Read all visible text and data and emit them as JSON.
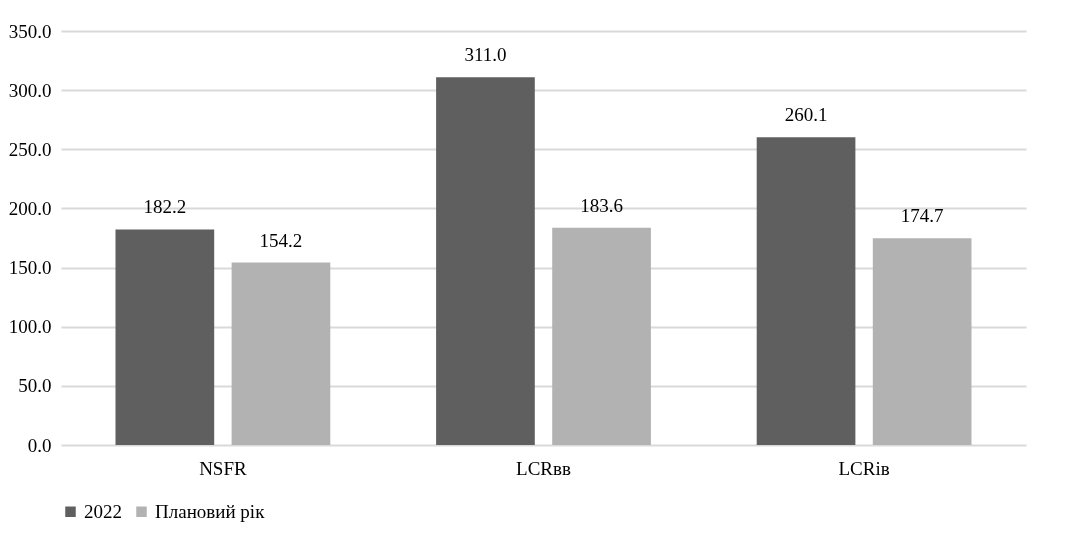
{
  "chart_data": {
    "type": "bar",
    "categories": [
      "NSFR",
      "LCRвв",
      "LCRiв"
    ],
    "series": [
      {
        "name": "2022",
        "color": "#5f5f5f",
        "values": [
          182.2,
          311.0,
          260.1
        ],
        "value_labels": [
          "182.2",
          "311.0",
          "260.1"
        ]
      },
      {
        "name": "Плановий рік",
        "color": "#b2b2b2",
        "values": [
          154.2,
          183.6,
          174.7
        ],
        "value_labels": [
          "154.2",
          "183.6",
          "174.7"
        ]
      }
    ],
    "ylim": [
      0,
      350
    ],
    "yticks": [
      {
        "value": 0,
        "label": "0.0"
      },
      {
        "value": 50,
        "label": "50.0"
      },
      {
        "value": 100,
        "label": "100.0"
      },
      {
        "value": 150,
        "label": "150.0"
      },
      {
        "value": 200,
        "label": "200.0"
      },
      {
        "value": 250,
        "label": "250.0"
      },
      {
        "value": 300,
        "label": "300.0"
      },
      {
        "value": 350,
        "label": "350.0"
      }
    ],
    "grid": "y",
    "legend": "bottom"
  }
}
